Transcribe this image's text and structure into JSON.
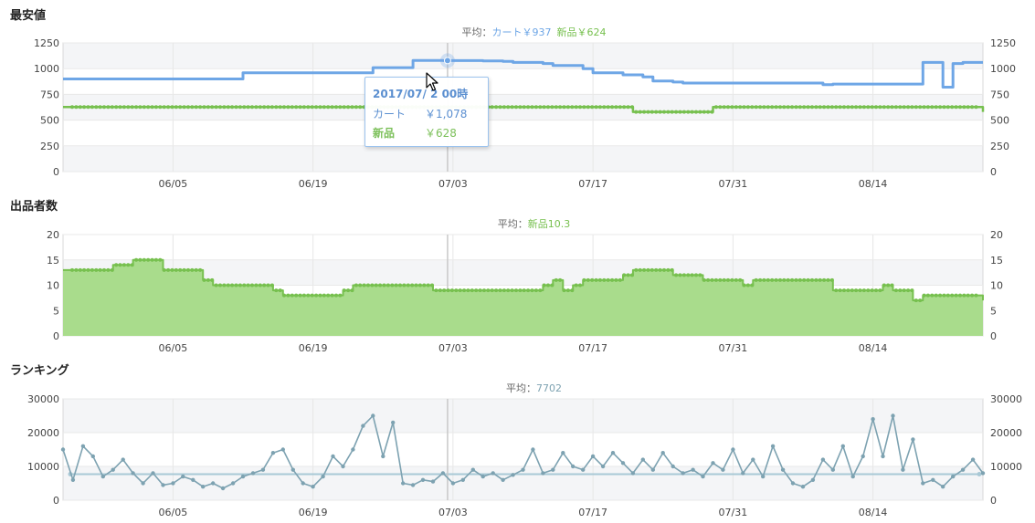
{
  "colors": {
    "cart": "#6ea6e6",
    "new": "#77c04f",
    "rank": "#7da2b1",
    "grid": "#e6e6e6",
    "band": "#f4f5f7"
  },
  "sections": {
    "price": {
      "title": "最安値",
      "avg_prefix": "平均：",
      "avg_cart": "カート￥937",
      "avg_new": "新品￥624"
    },
    "sellers": {
      "title": "出品者数",
      "avg_prefix": "平均：",
      "avg_new": "新品10.3"
    },
    "ranking": {
      "title": "ランキング",
      "avg_prefix": "平均：",
      "avg_value": "7702"
    }
  },
  "tooltip": {
    "date": "2017/07/ 2 00時",
    "cart_label": "カート",
    "cart_value": "￥1,078",
    "new_label": "新品",
    "new_value": "￥628"
  },
  "chart_data": [
    {
      "type": "line",
      "title": "最安値",
      "x_axis": {
        "start": "2017-05-25",
        "end": "2017-08-25",
        "tick_labels": [
          "06/05",
          "06/19",
          "07/03",
          "07/17",
          "07/31",
          "08/14"
        ]
      },
      "ylim": [
        0,
        1250
      ],
      "yticks": [
        0,
        250,
        500,
        750,
        1000,
        1250
      ],
      "series": [
        {
          "name": "カート",
          "color": "#6ea6e6",
          "step": true,
          "x": [
            "05-25",
            "06-11",
            "06-12",
            "06-18",
            "06-19",
            "06-24",
            "06-25",
            "06-28",
            "06-29",
            "07-01",
            "07-02",
            "07-05",
            "07-06",
            "07-08",
            "07-09",
            "07-12",
            "07-13",
            "07-16",
            "07-17",
            "07-19",
            "07-20",
            "07-22",
            "07-23",
            "07-25",
            "07-26",
            "08-09",
            "08-10",
            "08-18",
            "08-19",
            "08-20",
            "08-21",
            "08-22",
            "08-23",
            "08-25"
          ],
          "values": [
            900,
            900,
            960,
            960,
            960,
            960,
            1010,
            1010,
            1080,
            1080,
            1078,
            1078,
            1075,
            1070,
            1060,
            1050,
            1030,
            1000,
            960,
            960,
            940,
            920,
            880,
            870,
            860,
            845,
            850,
            850,
            1060,
            1060,
            820,
            1050,
            1060,
            1060
          ]
        },
        {
          "name": "新品",
          "color": "#77c04f",
          "step": true,
          "x": [
            "05-25",
            "07-20",
            "07-21",
            "07-28",
            "07-29",
            "08-24",
            "08-25"
          ],
          "values": [
            628,
            628,
            580,
            580,
            628,
            628,
            580
          ]
        }
      ]
    },
    {
      "type": "area",
      "title": "出品者数",
      "x_axis": {
        "start": "2017-05-25",
        "end": "2017-08-25",
        "tick_labels": [
          "06/05",
          "06/19",
          "07/03",
          "07/17",
          "07/31",
          "08/14"
        ]
      },
      "ylim": [
        0,
        20
      ],
      "yticks": [
        0,
        5,
        10,
        15,
        20
      ],
      "series": [
        {
          "name": "新品",
          "color": "#77c04f",
          "step": true,
          "x": [
            "05-25",
            "05-29",
            "05-30",
            "06-01",
            "06-03",
            "06-04",
            "06-07",
            "06-08",
            "06-09",
            "06-14",
            "06-15",
            "06-16",
            "06-21",
            "06-22",
            "06-23",
            "06-30",
            "07-01",
            "07-07",
            "07-08",
            "07-10",
            "07-12",
            "07-13",
            "07-14",
            "07-15",
            "07-16",
            "07-20",
            "07-21",
            "07-25",
            "07-26",
            "07-28",
            "07-29",
            "08-01",
            "08-02",
            "08-09",
            "08-10",
            "08-12",
            "08-15",
            "08-16",
            "08-17",
            "08-18",
            "08-19",
            "08-25"
          ],
          "values": [
            13,
            13,
            14,
            15,
            15,
            13,
            13,
            11,
            10,
            10,
            9,
            8,
            8,
            9,
            10,
            10,
            9,
            9,
            9,
            9,
            10,
            11,
            9,
            10,
            11,
            12,
            13,
            12,
            12,
            11,
            11,
            10,
            11,
            11,
            9,
            9,
            10,
            9,
            9,
            7,
            8,
            7
          ]
        }
      ]
    },
    {
      "type": "line",
      "title": "ランキング",
      "x_axis": {
        "start": "2017-05-25",
        "end": "2017-08-25",
        "tick_labels": [
          "06/05",
          "06/19",
          "07/03",
          "07/17",
          "07/31",
          "08/14"
        ]
      },
      "ylim": [
        0,
        30000
      ],
      "yticks": [
        0,
        10000,
        20000,
        30000
      ],
      "average": 7702,
      "series": [
        {
          "name": "ランキング",
          "color": "#7da2b1",
          "x": [
            "05-25",
            "05-26",
            "05-27",
            "05-28",
            "05-29",
            "05-30",
            "05-31",
            "06-01",
            "06-02",
            "06-03",
            "06-04",
            "06-05",
            "06-06",
            "06-07",
            "06-08",
            "06-09",
            "06-10",
            "06-11",
            "06-12",
            "06-13",
            "06-14",
            "06-15",
            "06-16",
            "06-17",
            "06-18",
            "06-19",
            "06-20",
            "06-21",
            "06-22",
            "06-23",
            "06-24",
            "06-25",
            "06-26",
            "06-27",
            "06-28",
            "06-29",
            "06-30",
            "07-01",
            "07-02",
            "07-03",
            "07-04",
            "07-05",
            "07-06",
            "07-07",
            "07-08",
            "07-09",
            "07-10",
            "07-11",
            "07-12",
            "07-13",
            "07-14",
            "07-15",
            "07-16",
            "07-17",
            "07-18",
            "07-19",
            "07-20",
            "07-21",
            "07-22",
            "07-23",
            "07-24",
            "07-25",
            "07-26",
            "07-27",
            "07-28",
            "07-29",
            "07-30",
            "07-31",
            "08-01",
            "08-02",
            "08-03",
            "08-04",
            "08-05",
            "08-06",
            "08-07",
            "08-08",
            "08-09",
            "08-10",
            "08-11",
            "08-12",
            "08-13",
            "08-14",
            "08-15",
            "08-16",
            "08-17",
            "08-18",
            "08-19",
            "08-20",
            "08-21",
            "08-22",
            "08-23",
            "08-24",
            "08-25"
          ],
          "values": [
            15000,
            6000,
            16000,
            13000,
            7000,
            9000,
            12000,
            8000,
            5000,
            8000,
            4500,
            5000,
            7000,
            6000,
            4000,
            5000,
            3500,
            5000,
            7000,
            8000,
            9000,
            14000,
            15000,
            9000,
            5000,
            4000,
            7000,
            13000,
            10000,
            15000,
            22000,
            25000,
            13000,
            23000,
            5000,
            4500,
            6000,
            5500,
            8000,
            5000,
            6000,
            9000,
            7000,
            8000,
            6000,
            7500,
            9000,
            15000,
            8000,
            9000,
            14000,
            10000,
            9000,
            13000,
            10000,
            14000,
            11000,
            8000,
            12000,
            9000,
            14000,
            10000,
            8000,
            9000,
            7000,
            11000,
            9000,
            15000,
            8000,
            12000,
            7000,
            16000,
            9000,
            5000,
            4000,
            6000,
            12000,
            9000,
            16000,
            7000,
            13000,
            24000,
            13000,
            25000,
            9000,
            18000,
            5000,
            6000,
            4000,
            7000,
            9000,
            12000,
            8000
          ]
        }
      ]
    }
  ]
}
